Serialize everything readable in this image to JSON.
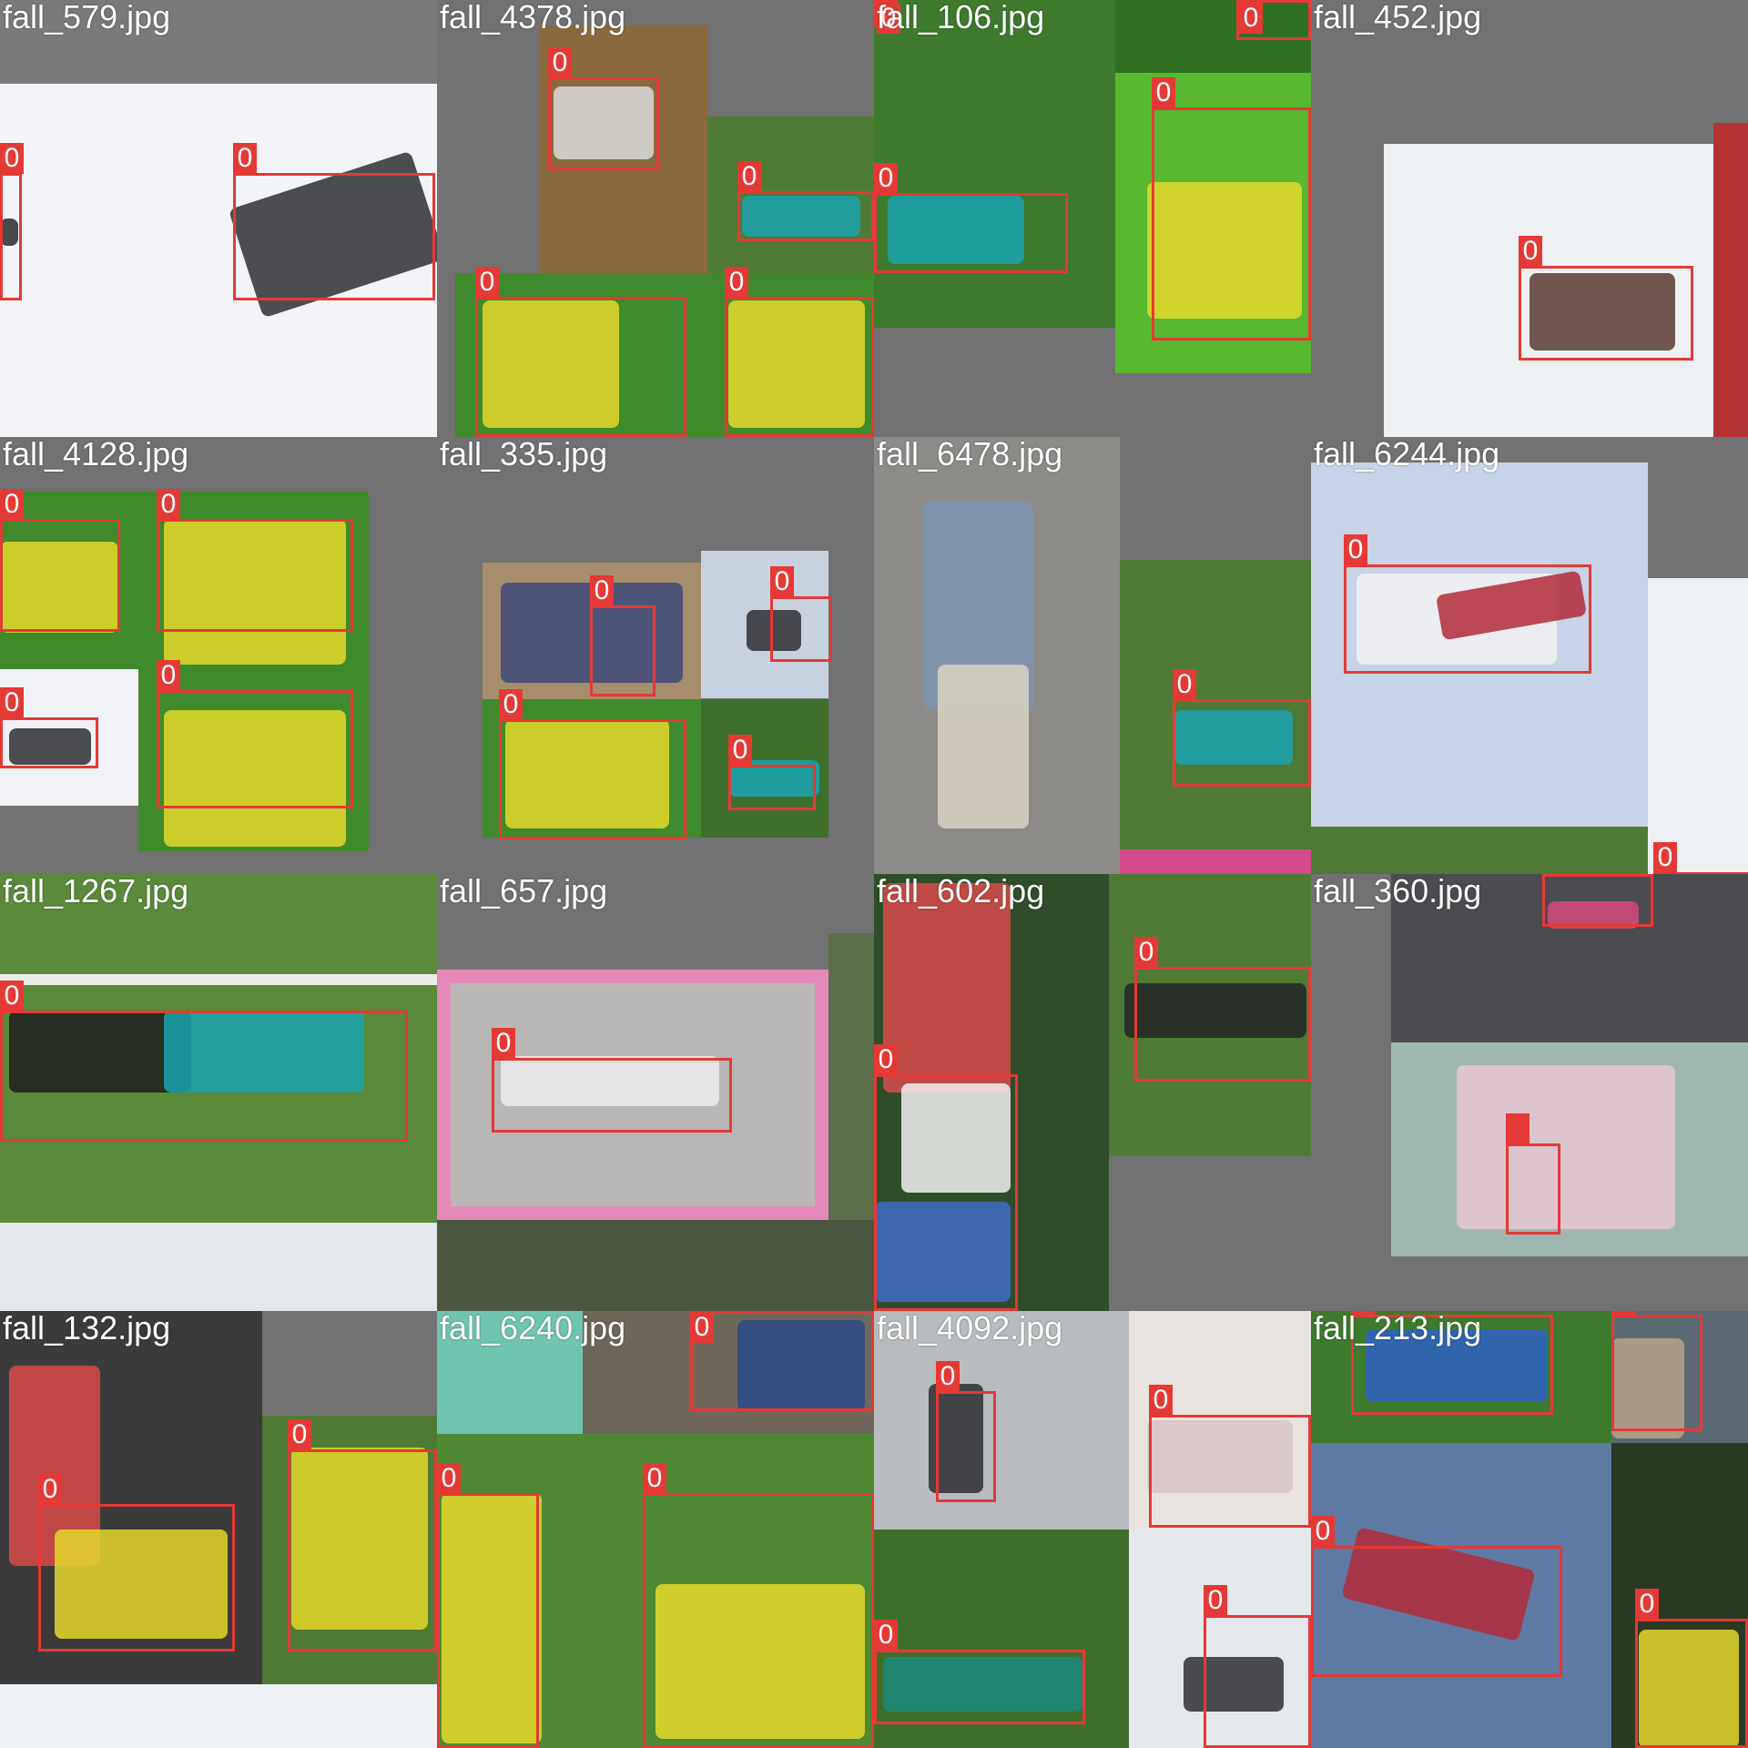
{
  "mosaic": {
    "background": "#ffffff",
    "box_color": "#e53935",
    "tiles": [
      {
        "file": "fall_579.jpg",
        "labels": [
          "0",
          "0"
        ]
      },
      {
        "file": "fall_4378.jpg",
        "labels": [
          "0",
          "0",
          "0",
          "0"
        ]
      },
      {
        "file": "fall_106.jpg",
        "labels": [
          "0",
          "0",
          "0",
          "0"
        ]
      },
      {
        "file": "fall_452.jpg",
        "labels": [
          "0"
        ]
      },
      {
        "file": "fall_4128.jpg",
        "labels": [
          "0",
          "0",
          "0",
          "0"
        ]
      },
      {
        "file": "fall_335.jpg",
        "labels": [
          "0",
          "0",
          "0",
          "0"
        ]
      },
      {
        "file": "fall_6478.jpg",
        "labels": [
          "0"
        ]
      },
      {
        "file": "fall_6244.jpg",
        "labels": [
          "0",
          "0"
        ]
      },
      {
        "file": "fall_1267.jpg",
        "labels": [
          "0"
        ]
      },
      {
        "file": "fall_657.jpg",
        "labels": [
          "0"
        ]
      },
      {
        "file": "fall_602.jpg",
        "labels": [
          "0",
          "0"
        ]
      },
      {
        "file": "fall_360.jpg",
        "labels": [
          "0"
        ]
      },
      {
        "file": "fall_132.jpg",
        "labels": [
          "0",
          "0"
        ]
      },
      {
        "file": "fall_6240.jpg",
        "labels": [
          "0",
          "0",
          "0"
        ]
      },
      {
        "file": "fall_4092.jpg",
        "labels": [
          "0",
          "0",
          "0",
          "0"
        ]
      },
      {
        "file": "fall_213.jpg",
        "labels": [
          "0",
          "0",
          "0",
          "0"
        ]
      }
    ]
  }
}
